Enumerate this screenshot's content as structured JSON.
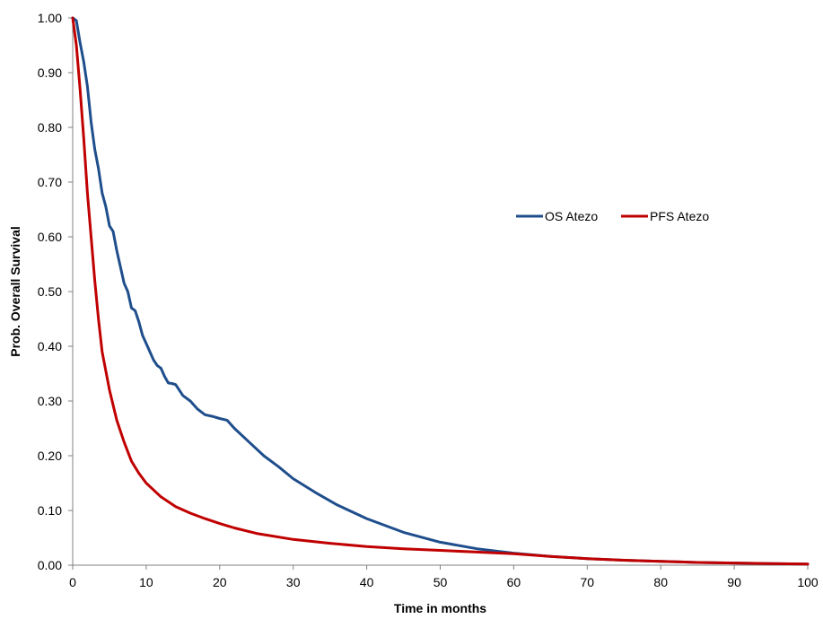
{
  "chart_data": {
    "type": "line",
    "title": "",
    "xlabel": "Time in months",
    "ylabel": "Prob. Overall Survival",
    "xlim": [
      0,
      100
    ],
    "ylim": [
      0,
      1
    ],
    "xticks": [
      "0",
      "10",
      "20",
      "30",
      "40",
      "50",
      "60",
      "70",
      "80",
      "90",
      "100"
    ],
    "yticks": [
      "0.00",
      "0.10",
      "0.20",
      "0.30",
      "0.40",
      "0.50",
      "0.60",
      "0.70",
      "0.80",
      "0.90",
      "1.00"
    ],
    "grid": false,
    "legend_position": "right-center",
    "series": [
      {
        "name": "OS Atezo",
        "color": "#1F4E8C",
        "x": [
          0,
          0.5,
          1,
          1.5,
          2,
          2.5,
          3,
          3.5,
          4,
          4.5,
          5,
          5.5,
          6,
          6.5,
          7,
          7.5,
          8,
          8.5,
          9,
          9.5,
          10,
          10.5,
          11,
          11.5,
          12,
          12.5,
          13,
          13.5,
          14,
          15,
          16,
          17,
          18,
          19,
          20,
          21,
          22,
          24,
          26,
          28,
          30,
          33,
          36,
          40,
          45,
          50,
          55,
          60,
          65,
          70,
          75,
          80,
          85,
          90,
          95,
          100
        ],
        "y": [
          1.0,
          0.995,
          0.955,
          0.92,
          0.875,
          0.81,
          0.76,
          0.725,
          0.68,
          0.655,
          0.62,
          0.61,
          0.575,
          0.545,
          0.515,
          0.5,
          0.47,
          0.465,
          0.445,
          0.42,
          0.405,
          0.39,
          0.375,
          0.365,
          0.36,
          0.345,
          0.333,
          0.332,
          0.33,
          0.31,
          0.3,
          0.285,
          0.275,
          0.272,
          0.268,
          0.265,
          0.25,
          0.225,
          0.2,
          0.18,
          0.158,
          0.133,
          0.11,
          0.085,
          0.06,
          0.042,
          0.03,
          0.022,
          0.016,
          0.012,
          0.009,
          0.007,
          0.005,
          0.004,
          0.003,
          0.002
        ]
      },
      {
        "name": "PFS Atezo",
        "color": "#C00000",
        "x": [
          0,
          0.5,
          1,
          1.5,
          2,
          2.5,
          3,
          3.5,
          4,
          5,
          6,
          7,
          8,
          9,
          10,
          12,
          14,
          16,
          18,
          20,
          22,
          25,
          30,
          35,
          40,
          45,
          50,
          55,
          60,
          65,
          70,
          75,
          80,
          85,
          90,
          95,
          100
        ],
        "y": [
          1.0,
          0.95,
          0.87,
          0.78,
          0.68,
          0.6,
          0.52,
          0.45,
          0.39,
          0.32,
          0.265,
          0.225,
          0.19,
          0.168,
          0.15,
          0.125,
          0.107,
          0.095,
          0.085,
          0.076,
          0.068,
          0.058,
          0.047,
          0.04,
          0.034,
          0.03,
          0.027,
          0.024,
          0.021,
          0.016,
          0.012,
          0.009,
          0.007,
          0.005,
          0.004,
          0.003,
          0.002
        ]
      }
    ]
  }
}
